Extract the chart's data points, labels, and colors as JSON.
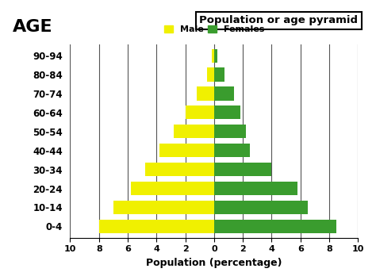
{
  "age_groups": [
    "0-4",
    "10-14",
    "20-24",
    "30-34",
    "40-44",
    "50-54",
    "60-64",
    "70-74",
    "80-84",
    "90-94"
  ],
  "male": [
    8.0,
    7.0,
    5.8,
    4.8,
    3.8,
    2.8,
    2.0,
    1.2,
    0.5,
    0.15
  ],
  "female": [
    8.5,
    6.5,
    5.8,
    4.0,
    2.5,
    2.2,
    1.8,
    1.4,
    0.7,
    0.2
  ],
  "male_color": "#f0f000",
  "female_color": "#3a9c2e",
  "title": "Population or age pyramid",
  "xlabel": "Population (percentage)",
  "ylabel": "AGE",
  "xlim": 10,
  "legend_male": "Male",
  "legend_female": "Females",
  "background_color": "#ffffff",
  "grid_color": "#555555"
}
